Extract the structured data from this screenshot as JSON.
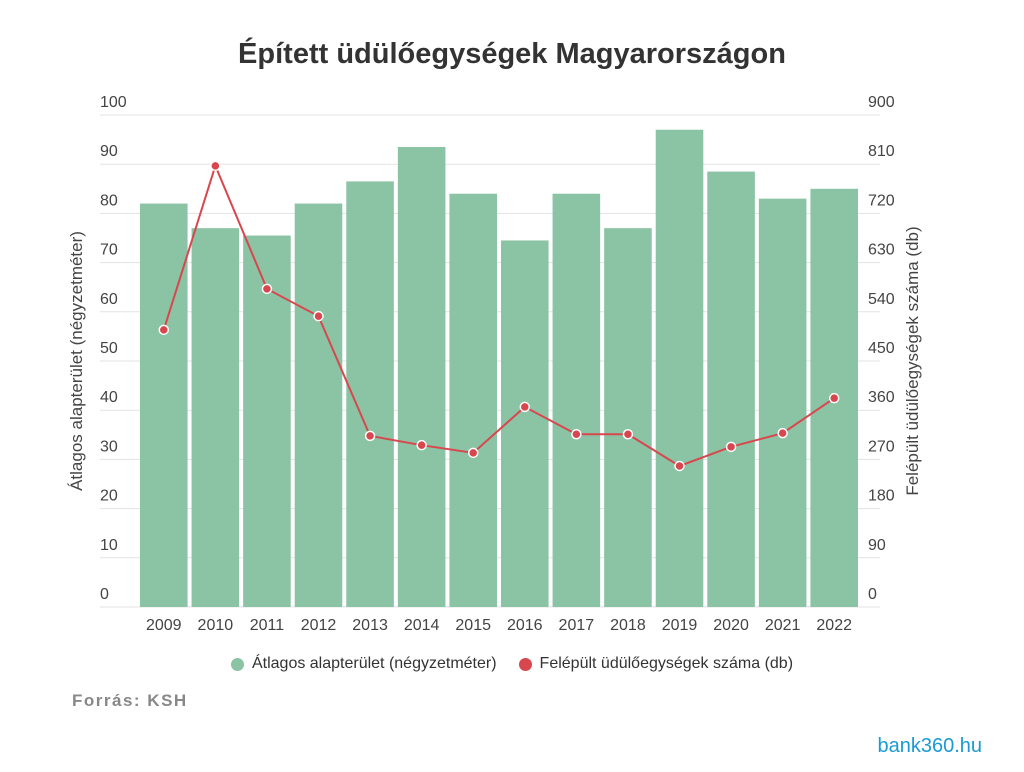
{
  "chart_data": {
    "type": "bar+line",
    "title": "Épített üdülőegységek Magyarországon",
    "categories": [
      "2009",
      "2010",
      "2011",
      "2012",
      "2013",
      "2014",
      "2015",
      "2016",
      "2017",
      "2018",
      "2019",
      "2020",
      "2021",
      "2022"
    ],
    "series": [
      {
        "name": "Átlagos alapterület (négyzetméter)",
        "type": "bar",
        "axis": "left",
        "color": "#8bc3a5",
        "values": [
          82,
          77,
          75.5,
          82,
          86.5,
          93.5,
          84,
          74.5,
          84,
          77,
          97,
          88.5,
          83,
          85
        ]
      },
      {
        "name": "Felépült üdülőegységek száma (db)",
        "type": "line",
        "axis": "right",
        "color": "#d9474e",
        "values": [
          507,
          807,
          582,
          532,
          313,
          296,
          282,
          366,
          316,
          316,
          258,
          293,
          318,
          382
        ]
      }
    ],
    "ylabel_left": "Átlagos alapterület (négyzetméter)",
    "ylabel_right": "Felépült üdülőegységek száma (db)",
    "ylim_left": [
      0,
      100
    ],
    "ylim_right": [
      0,
      900
    ],
    "yticks_left": [
      "0",
      "10",
      "20",
      "30",
      "40",
      "50",
      "60",
      "70",
      "80",
      "90",
      "100"
    ],
    "yticks_right": [
      "0",
      "90",
      "180",
      "270",
      "360",
      "450",
      "540",
      "630",
      "720",
      "810",
      "900"
    ],
    "grid": true,
    "legend": "bottom"
  },
  "source": "Forrás: KSH",
  "logo": "bank360.hu"
}
